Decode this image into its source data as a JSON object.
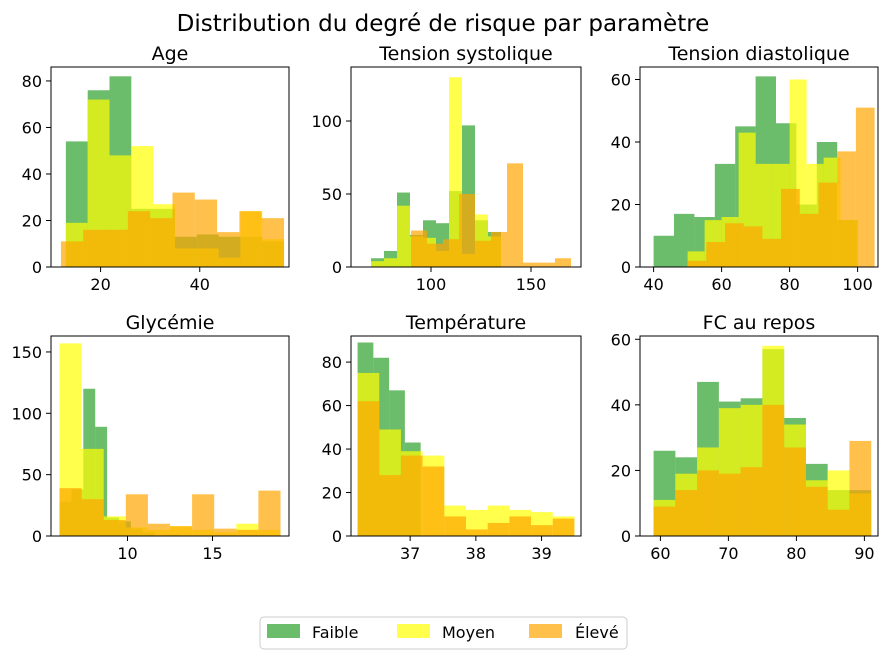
{
  "figure": {
    "suptitle": "Distribution du degré de risque par paramètre"
  },
  "legend": {
    "placement": "bottom-center",
    "items": [
      {
        "label": "Faible",
        "color": "#2ca02c"
      },
      {
        "label": "Moyen",
        "color": "#ffff00"
      },
      {
        "label": "Élevé",
        "color": "#ffa500"
      }
    ]
  },
  "chart_data": [
    {
      "type": "histogram",
      "title": "Age",
      "xlim": [
        10,
        58
      ],
      "ylim": [
        0,
        86
      ],
      "xticks": [
        20,
        40
      ],
      "yticks": [
        0,
        20,
        40,
        60,
        80
      ],
      "series": [
        {
          "name": "Faible",
          "edges": [
            13,
            17.4,
            21.8,
            26.2,
            30.6,
            35,
            39.4,
            43.8,
            48.2,
            52.6,
            57
          ],
          "values": [
            54,
            76,
            82,
            25,
            25,
            13,
            14,
            13,
            13,
            11
          ]
        },
        {
          "name": "Moyen",
          "edges": [
            13,
            17.4,
            21.8,
            26.2,
            30.6,
            35,
            39.4,
            43.8,
            48.2,
            52.6,
            57
          ],
          "values": [
            19,
            72,
            48,
            52,
            27,
            8,
            8,
            4,
            24,
            12
          ]
        },
        {
          "name": "Élevé",
          "edges": [
            12,
            16.5,
            21,
            25.5,
            30,
            34.5,
            39,
            43.5,
            48,
            52.5,
            57
          ],
          "values": [
            11,
            16,
            16,
            24,
            21,
            32,
            29,
            15,
            24,
            21
          ]
        }
      ]
    },
    {
      "type": "histogram",
      "title": "Tension systolique",
      "xlim": [
        60,
        175
      ],
      "ylim": [
        0,
        137
      ],
      "xticks": [
        100,
        150
      ],
      "yticks": [
        0,
        50,
        100
      ],
      "series": [
        {
          "name": "Faible",
          "edges": [
            70,
            76.5,
            83,
            89.5,
            96,
            102.5,
            109,
            115.5,
            122,
            128.5,
            135
          ],
          "values": [
            6,
            11,
            51,
            22,
            32,
            30,
            52,
            97,
            32,
            24
          ]
        },
        {
          "name": "Moyen",
          "edges": [
            70,
            76.5,
            83,
            89.5,
            96,
            102.5,
            109,
            115.5,
            122,
            128.5,
            135
          ],
          "values": [
            4,
            6,
            42,
            21,
            20,
            11,
            130,
            9,
            36,
            21
          ]
        },
        {
          "name": "Élevé",
          "edges": [
            90,
            98,
            106,
            114,
            122,
            130,
            138,
            146,
            154,
            162,
            170
          ],
          "values": [
            25,
            16,
            19,
            50,
            18,
            24,
            71,
            3,
            3,
            6
          ]
        }
      ]
    },
    {
      "type": "histogram",
      "title": "Tension diastolique",
      "xlim": [
        36,
        106
      ],
      "ylim": [
        0,
        64
      ],
      "xticks": [
        40,
        60,
        80,
        100
      ],
      "yticks": [
        0,
        20,
        40,
        60
      ],
      "series": [
        {
          "name": "Faible",
          "edges": [
            40,
            46,
            52,
            58,
            64,
            70,
            76,
            82,
            88,
            94,
            100
          ],
          "values": [
            10,
            17,
            16,
            33,
            45,
            61,
            46,
            20,
            40,
            15
          ]
        },
        {
          "name": "Moyen",
          "edges": [
            50,
            55,
            60,
            65,
            70,
            75,
            80,
            85,
            90,
            95,
            100
          ],
          "values": [
            5,
            15,
            16,
            43,
            33,
            33,
            60,
            33,
            35,
            15
          ]
        },
        {
          "name": "Élevé",
          "edges": [
            50,
            55.5,
            61,
            66.5,
            72,
            77.5,
            83,
            88.5,
            94,
            99.5,
            105
          ],
          "values": [
            2,
            8,
            14,
            13,
            9,
            25,
            17,
            27,
            37,
            51
          ]
        }
      ]
    },
    {
      "type": "histogram",
      "title": "Glycémie",
      "xlim": [
        5.5,
        19.5
      ],
      "ylim": [
        0,
        163
      ],
      "xticks": [
        10,
        15
      ],
      "yticks": [
        0,
        50,
        100,
        150
      ],
      "series": [
        {
          "name": "Faible",
          "edges": [
            6,
            6.7,
            7.4,
            8.1,
            8.8,
            9.5,
            10.2,
            10.9,
            11.6,
            12.3,
            13
          ],
          "values": [
            28,
            38,
            120,
            89,
            15,
            12,
            6,
            3,
            0,
            1
          ]
        },
        {
          "name": "Moyen",
          "edges": [
            6,
            7.3,
            8.6,
            9.9,
            11.2,
            12.5,
            13.8,
            15.1,
            16.4,
            17.7,
            19
          ],
          "values": [
            157,
            71,
            16,
            7,
            5,
            8,
            5,
            3,
            10,
            5
          ]
        },
        {
          "name": "Élevé",
          "edges": [
            6,
            7.3,
            8.6,
            9.9,
            11.2,
            12.5,
            13.8,
            15.1,
            16.4,
            17.7,
            19
          ],
          "values": [
            39,
            30,
            13,
            34,
            10,
            8,
            34,
            6,
            5,
            37
          ]
        }
      ]
    },
    {
      "type": "histogram",
      "title": "Température",
      "xlim": [
        36.1,
        39.6
      ],
      "ylim": [
        0,
        92
      ],
      "xticks": [
        37,
        38,
        39
      ],
      "yticks": [
        0,
        20,
        40,
        60,
        80
      ],
      "series": [
        {
          "name": "Faible",
          "edges": [
            36.2,
            36.44,
            36.68,
            36.92,
            37.16,
            37.4,
            37.64,
            37.88,
            38.12,
            38.36,
            38.6
          ],
          "values": [
            89,
            82,
            67,
            43,
            0,
            0,
            0,
            0,
            0,
            0
          ]
        },
        {
          "name": "Moyen",
          "edges": [
            36.2,
            36.53,
            36.86,
            37.19,
            37.52,
            37.85,
            38.18,
            38.51,
            38.84,
            39.17,
            39.5
          ],
          "values": [
            75,
            49,
            39,
            37,
            14,
            12,
            14,
            12,
            11,
            9
          ]
        },
        {
          "name": "Élevé",
          "edges": [
            36.2,
            36.53,
            36.86,
            37.19,
            37.52,
            37.85,
            38.18,
            38.51,
            38.84,
            39.17,
            39.5
          ],
          "values": [
            62,
            28,
            37,
            32,
            9,
            3,
            6,
            9,
            5,
            8
          ]
        }
      ]
    },
    {
      "type": "histogram",
      "title": "FC au repos",
      "xlim": [
        57,
        92
      ],
      "ylim": [
        0,
        61
      ],
      "xticks": [
        60,
        70,
        80,
        90
      ],
      "yticks": [
        0,
        20,
        40,
        60
      ],
      "series": [
        {
          "name": "Faible",
          "edges": [
            59,
            62.2,
            65.4,
            68.6,
            71.8,
            75,
            78.2,
            81.4,
            84.6,
            87.8,
            91
          ],
          "values": [
            26,
            24,
            47,
            41,
            42,
            57,
            36,
            22,
            14,
            14
          ]
        },
        {
          "name": "Moyen",
          "edges": [
            59,
            62.2,
            65.4,
            68.6,
            71.8,
            75,
            78.2,
            81.4,
            84.6,
            87.8,
            91
          ],
          "values": [
            11,
            19,
            27,
            39,
            40,
            58,
            34,
            17,
            20,
            13
          ]
        },
        {
          "name": "Élevé",
          "edges": [
            59,
            62.2,
            65.4,
            68.6,
            71.8,
            75,
            78.2,
            81.4,
            84.6,
            87.8,
            91
          ],
          "values": [
            9,
            14,
            20,
            19,
            21,
            40,
            27,
            15,
            8,
            29
          ]
        }
      ]
    }
  ]
}
